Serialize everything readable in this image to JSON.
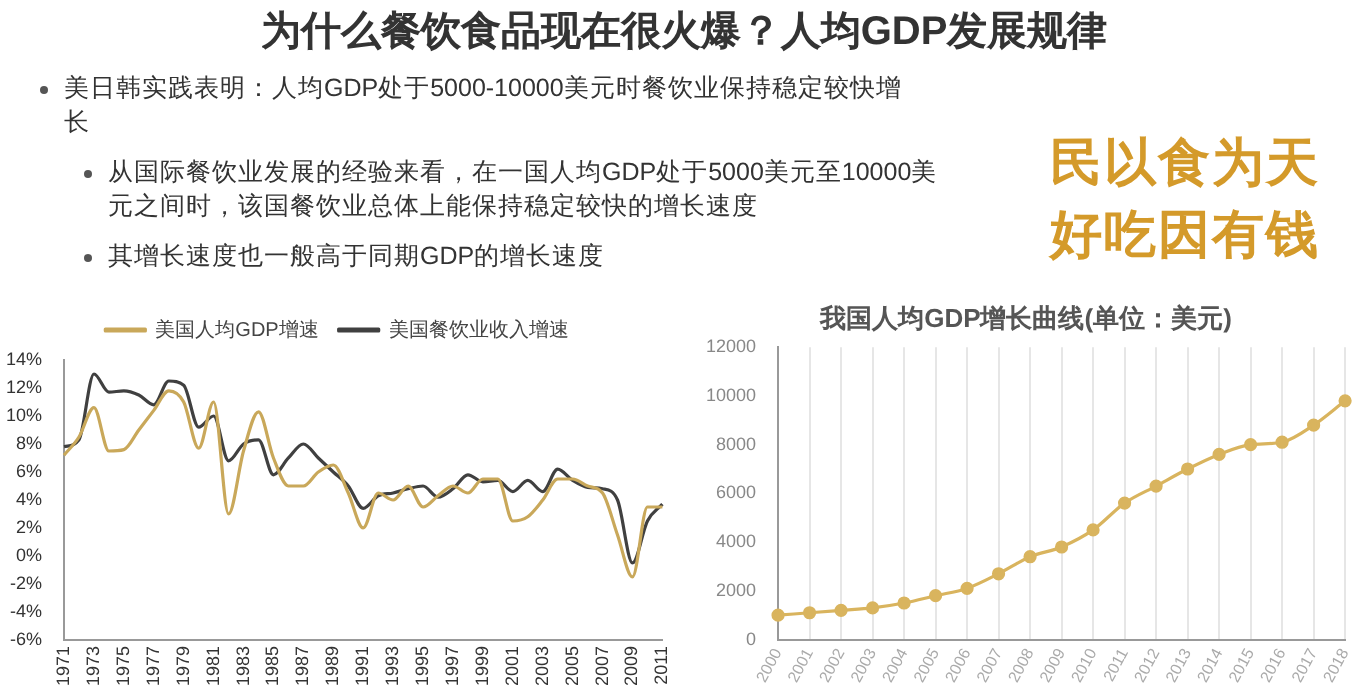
{
  "chart_data": [
    {
      "type": "other",
      "title": "为什么餐饮食品现在很火爆？人均GDP发展规律",
      "annotations": [
        "美日韩实践表明：人均GDP处于5000-10000美元时餐饮业保持稳定较快增长",
        "从国际餐饮业发展的经验来看，在一国人均GDP处于5000美元至10000美元之间时，该国餐饮业总体上能保持稳定较快的增长速度",
        "其增长速度也一般高于同期GDP的增长速度",
        "民以食为天",
        "好吃因有钱"
      ]
    },
    {
      "type": "line",
      "categories": [
        "1971",
        null,
        "1973",
        null,
        "1975",
        null,
        "1977",
        null,
        "1979",
        null,
        "1981",
        null,
        "1983",
        null,
        "1985",
        null,
        "1987",
        null,
        "1989",
        null,
        "1991",
        null,
        "1993",
        null,
        "1995",
        null,
        "1997",
        null,
        "1999",
        null,
        "2001",
        null,
        "2003",
        null,
        "2005",
        null,
        "2007",
        null,
        "2009",
        null,
        "2011"
      ],
      "series": [
        {
          "name": "美国人均GDP增速",
          "color": "#c9a85a",
          "values": [
            7.2,
            8.5,
            10.6,
            7.5,
            7.6,
            9.0,
            10.4,
            11.8,
            11.0,
            7.7,
            11.0,
            3.0,
            7.5,
            10.3,
            7.0,
            5.0,
            5.0,
            6.0,
            6.5,
            4.5,
            2.0,
            4.5,
            4.0,
            5.0,
            3.5,
            4.3,
            5.0,
            4.5,
            5.5,
            5.5,
            2.5,
            2.8,
            4.0,
            5.5,
            5.5,
            5.0,
            4.5,
            1.5,
            -1.5,
            3.5,
            3.5
          ]
        },
        {
          "name": "美国餐饮业收入增速",
          "color": "#404040",
          "values": [
            7.8,
            8.3,
            13.0,
            11.7,
            11.8,
            11.5,
            10.8,
            12.5,
            12.2,
            9.2,
            10.0,
            6.8,
            8.0,
            8.3,
            5.8,
            7.0,
            8.0,
            7.0,
            6.0,
            5.0,
            3.4,
            4.3,
            4.5,
            4.8,
            5.0,
            4.2,
            4.8,
            5.8,
            5.3,
            5.4,
            4.6,
            5.4,
            4.6,
            6.2,
            5.4,
            4.9,
            4.8,
            4.0,
            -0.5,
            2.5,
            3.7
          ]
        }
      ],
      "ylim": [
        -6,
        14
      ],
      "yticks": [
        {
          "value": -6,
          "label": "-6%"
        },
        {
          "value": -4,
          "label": "-4%"
        },
        {
          "value": -2,
          "label": "-2%"
        },
        {
          "value": 0,
          "label": "0%"
        },
        {
          "value": 2,
          "label": "2%"
        },
        {
          "value": 4,
          "label": "4%"
        },
        {
          "value": 6,
          "label": "6%"
        },
        {
          "value": 8,
          "label": "8%"
        },
        {
          "value": 10,
          "label": "10%"
        },
        {
          "value": 12,
          "label": "12%"
        },
        {
          "value": 14,
          "label": "14%"
        }
      ],
      "legend": "top",
      "grid": false,
      "marker": "none"
    },
    {
      "type": "line",
      "title": "我国人均GDP增长曲线(单位：美元)",
      "categories": [
        "2000",
        "2001",
        "2002",
        "2003",
        "2004",
        "2005",
        "2006",
        "2007",
        "2008",
        "2009",
        "2010",
        "2011",
        "2012",
        "2013",
        "2014",
        "2015",
        "2016",
        "2017",
        "2018"
      ],
      "series": [
        {
          "color": "#d9b45e",
          "values": [
            1000,
            1100,
            1200,
            1300,
            1500,
            1800,
            2100,
            2700,
            3400,
            3800,
            4500,
            5600,
            6300,
            7000,
            7600,
            8000,
            8100,
            8800,
            9800
          ]
        }
      ],
      "ylim": [
        0,
        12000
      ],
      "yticks": [
        0,
        2000,
        4000,
        6000,
        8000,
        10000,
        12000
      ],
      "grid": "x",
      "marker": "circle"
    }
  ]
}
